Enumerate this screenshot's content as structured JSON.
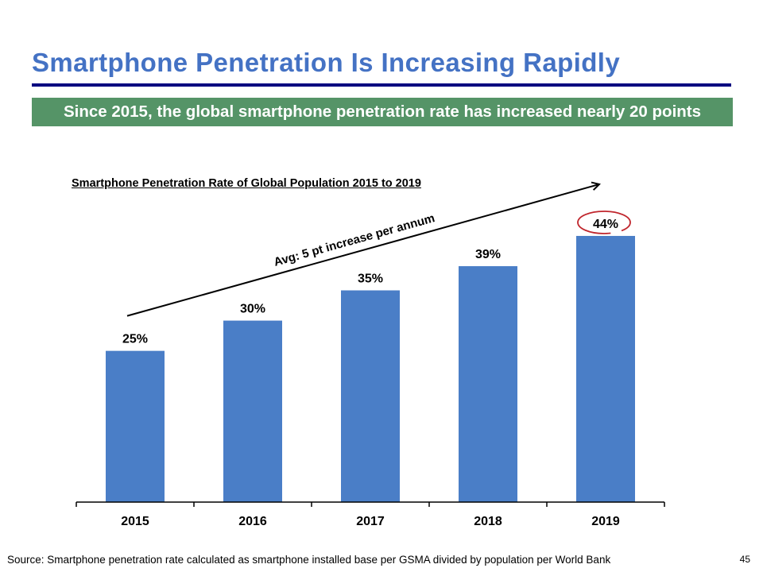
{
  "slide": {
    "title": "Smartphone Penetration Is Increasing Rapidly",
    "banner": "Since 2015, the global smartphone penetration rate has increased nearly 20 points",
    "source": "Source: Smartphone penetration rate calculated as smartphone installed base per GSMA divided by population per World Bank",
    "page_number": "45"
  },
  "colors": {
    "title": "#4472C4",
    "divider": "#000080",
    "banner_bg": "#559467",
    "bar": "#4A7EC7",
    "highlight_circle": "#C0262D"
  },
  "chart_data": {
    "type": "bar",
    "title": "Smartphone Penetration Rate of Global Population 2015 to 2019",
    "categories": [
      "2015",
      "2016",
      "2017",
      "2018",
      "2019"
    ],
    "values": [
      25,
      30,
      35,
      39,
      44
    ],
    "data_labels": [
      "25%",
      "30%",
      "35%",
      "39%",
      "44%"
    ],
    "unit": "%",
    "xlabel": "",
    "ylabel": "",
    "ylim": [
      0,
      83
    ],
    "grid": false,
    "legend": "none",
    "highlighted_category": "2019",
    "annotations": [
      {
        "type": "arrow",
        "text": "Avg: 5 pt increase per annum",
        "from_category": "2015",
        "to_category": "2019"
      }
    ]
  }
}
